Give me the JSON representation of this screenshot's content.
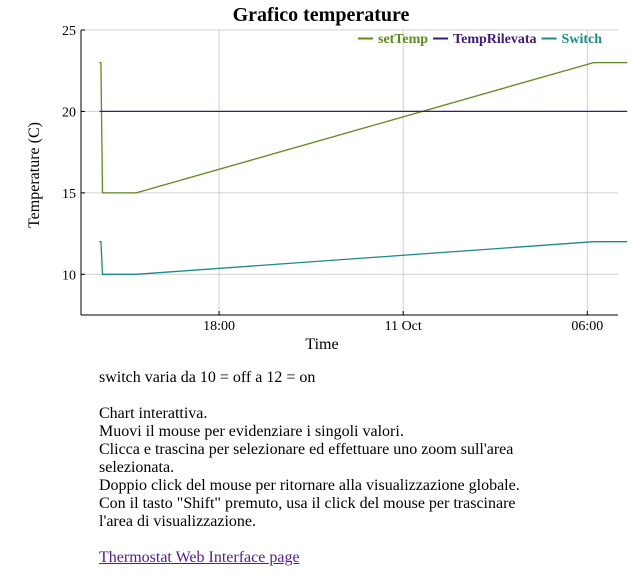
{
  "chart_data": {
    "type": "line",
    "title": "Grafico temperature",
    "xlabel": "Time",
    "ylabel": "Temperature (C)",
    "ylim": [
      7.5,
      25
    ],
    "xlim_hours": [
      13.5,
      31.0
    ],
    "x_ticks": [
      {
        "label": "18:00",
        "hour": 18
      },
      {
        "label": "11 Oct",
        "hour": 24
      },
      {
        "label": "06:00",
        "hour": 30
      }
    ],
    "y_ticks": [
      10,
      15,
      20,
      25
    ],
    "grid": true,
    "legend_position": "top-right",
    "series": [
      {
        "name": "setTemp",
        "color": "#5c8a1c",
        "x": [
          14.1,
          14.15,
          14.2,
          15.3,
          30.2,
          31.3
        ],
        "y": [
          23,
          23,
          15,
          15,
          23,
          23
        ]
      },
      {
        "name": "TempRilevata",
        "color": "#3d1a78",
        "x": [
          14.1,
          31.3
        ],
        "y": [
          20,
          20
        ]
      },
      {
        "name": "Switch",
        "color": "#1a8a8a",
        "x": [
          14.1,
          14.15,
          14.2,
          15.3,
          30.2,
          31.3
        ],
        "y": [
          12,
          12,
          10,
          10,
          12,
          12
        ]
      }
    ]
  },
  "notes": {
    "switch_line": "switch varia da 10 = off a 12 = on",
    "instructions": [
      "Chart interattiva.",
      "Muovi il mouse per evidenziare i singoli valori.",
      "Clicca e trascina per selezionare ed effettuare uno zoom sull'area selezionata.",
      "Doppio click del mouse per ritornare alla visualizzazione globale.",
      "Con il tasto \"Shift\" premuto, usa il click del mouse per trascinare l'area di visualizzazione."
    ]
  },
  "link": {
    "label": "Thermostat Web Interface page"
  }
}
